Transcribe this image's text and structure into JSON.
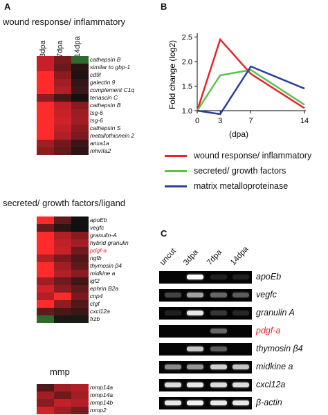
{
  "panels": {
    "a": "A",
    "b": "B",
    "c": "C"
  },
  "heatmap_wound": {
    "title": "wound response/ inflammatory",
    "columns": [
      "3dpa",
      "7dpa",
      "14dpa"
    ],
    "genes": [
      "cathepsin B",
      "similar to gbp-1",
      "cd9l",
      "galectin 9",
      "complement C1q",
      "tenascin C",
      "cathepsin B",
      "tsg-6",
      "tsg-6",
      "cathepsin S",
      "metallothionein 2",
      "anxa1a",
      "mhvIIa2"
    ],
    "colors": [
      [
        "#c8202a",
        "#7a1a1e",
        "#2e6a2e"
      ],
      [
        "#c8202a",
        "#6a1a1c",
        "#2a1212"
      ],
      [
        "#ff2a2a",
        "#8a1c20",
        "#1e1212"
      ],
      [
        "#ff2a2a",
        "#a01e24",
        "#301616"
      ],
      [
        "#ff2a2a",
        "#b02026",
        "#3a1818"
      ],
      [
        "#8e1c22",
        "#4a1618",
        "#161010"
      ],
      [
        "#ff2a2a",
        "#c02028",
        "#8a1c20"
      ],
      [
        "#ff2a2a",
        "#c82228",
        "#9a1e22"
      ],
      [
        "#ff2a2a",
        "#d02228",
        "#a01e24"
      ],
      [
        "#ff2a2a",
        "#c02028",
        "#8a1c20"
      ],
      [
        "#ff2a2a",
        "#b02026",
        "#781a1e"
      ],
      [
        "#a01e24",
        "#701a1e",
        "#3a1618"
      ],
      [
        "#8a1c20",
        "#601a1c",
        "#2e1414"
      ]
    ]
  },
  "heatmap_secreted": {
    "title": "secreted/ growth factors/ligand",
    "genes": [
      "apoEb",
      "vegfc",
      "granulin-A",
      "hybrid granulin",
      "pdgf-a",
      "ngfb",
      "thymosin β4",
      "midkine a",
      "igf2",
      "ephrin B2a",
      "cnp4",
      "ctgf",
      "cxcl12a",
      "frzb"
    ],
    "highlight_gene": "pdgf-a",
    "highlight_color": "#e8232a",
    "colors": [
      [
        "#ff2a2a",
        "#601a1c",
        "#101010"
      ],
      [
        "#6a1a1c",
        "#2a1414",
        "#101010"
      ],
      [
        "#ff2a2a",
        "#b02026",
        "#8a1c20"
      ],
      [
        "#ff2a2a",
        "#c02028",
        "#a01e24"
      ],
      [
        "#ff2a2a",
        "#c82228",
        "#701a1e"
      ],
      [
        "#b02026",
        "#7a1a1e",
        "#501818"
      ],
      [
        "#ff2a2a",
        "#a01e24",
        "#601a1c"
      ],
      [
        "#ff2a2a",
        "#b02026",
        "#8a1c20"
      ],
      [
        "#a01e24",
        "#701a1e",
        "#401616"
      ],
      [
        "#d02228",
        "#8a1c20",
        "#601a1c"
      ],
      [
        "#b02026",
        "#ff2a2a",
        "#7a1a1e"
      ],
      [
        "#ff2a2a",
        "#901c22",
        "#501818"
      ],
      [
        "#601a1c",
        "#4a1618",
        "#3a1616"
      ],
      [
        "#2e6a2e",
        "#1a1a14",
        "#1a1a14"
      ]
    ]
  },
  "heatmap_mmp": {
    "title": "mmp",
    "genes": [
      "mmp14a",
      "mmp14a",
      "mmp14b",
      "mmp2"
    ],
    "colors": [
      [
        "#501818",
        "#a01e24",
        "#b02026"
      ],
      [
        "#a01e24",
        "#701a1e",
        "#a01e24"
      ],
      [
        "#8a1c20",
        "#c02028",
        "#b02026"
      ],
      [
        "#d02228",
        "#a01e24",
        "#7a1a1e"
      ]
    ]
  },
  "chart_data": {
    "type": "line",
    "x": [
      0,
      3,
      7,
      14
    ],
    "xlabel": "(dpa)",
    "ylabel": "Fold change (log2)",
    "xticks": [
      "0",
      "3",
      "7",
      "14"
    ],
    "yticks": [
      "1.0",
      "1.5",
      "2.0",
      "2.5"
    ],
    "ylim": [
      1.0,
      2.55
    ],
    "series": [
      {
        "name": "wound response/ inflammatory",
        "color": "#e8232a",
        "values": [
          1.0,
          2.45,
          1.75,
          1.05
        ]
      },
      {
        "name": "secreted/ growth factors",
        "color": "#5cc24a",
        "values": [
          1.0,
          1.72,
          1.83,
          1.12
        ]
      },
      {
        "name": "matrix metalloproteinase",
        "color": "#2a3e9a",
        "values": [
          1.0,
          0.93,
          1.9,
          1.45
        ]
      }
    ]
  },
  "gel": {
    "lanes": [
      "uncut",
      "3dpa",
      "7dpa",
      "14dpa"
    ],
    "genes": [
      "apoEb",
      "vegfc",
      "granulin A",
      "pdgf-a",
      "thymosin β4",
      "midkine a",
      "cxcl12a",
      "β-actin"
    ],
    "highlight_gene": "pdgf-a",
    "highlight_color": "#e8232a",
    "band_intensity": [
      [
        0.0,
        1.0,
        0.05,
        0.05
      ],
      [
        0.2,
        0.6,
        0.35,
        0.3
      ],
      [
        0.05,
        0.9,
        0.15,
        0.08
      ],
      [
        0.0,
        0.0,
        0.35,
        0.0
      ],
      [
        0.0,
        0.75,
        0.3,
        0.0
      ],
      [
        0.5,
        0.55,
        0.8,
        0.75
      ],
      [
        0.85,
        0.9,
        0.85,
        0.85
      ],
      [
        0.9,
        0.95,
        0.9,
        0.9
      ]
    ]
  }
}
